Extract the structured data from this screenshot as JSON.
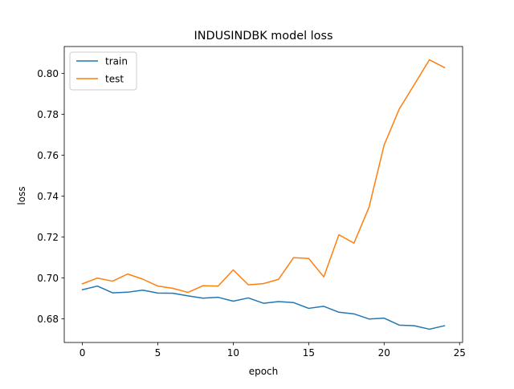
{
  "chart_data": {
    "type": "line",
    "title": "INDUSINDBK model loss",
    "xlabel": "epoch",
    "ylabel": "loss",
    "xlim": [
      -1.2,
      25.2
    ],
    "ylim": [
      0.6684,
      0.8132
    ],
    "xticks": [
      0,
      5,
      10,
      15,
      20,
      25
    ],
    "yticks": [
      0.68,
      0.7,
      0.72,
      0.74,
      0.76,
      0.78,
      0.8
    ],
    "grid": false,
    "legend_position": "upper left",
    "x": [
      0,
      1,
      2,
      3,
      4,
      5,
      6,
      7,
      8,
      9,
      10,
      11,
      12,
      13,
      14,
      15,
      16,
      17,
      18,
      19,
      20,
      21,
      22,
      23,
      24
    ],
    "series": [
      {
        "name": "train",
        "color": "#1f77b4",
        "values": [
          0.6942,
          0.696,
          0.6927,
          0.693,
          0.694,
          0.6926,
          0.6925,
          0.6912,
          0.6901,
          0.6905,
          0.6886,
          0.6902,
          0.6876,
          0.6884,
          0.6879,
          0.6851,
          0.6861,
          0.6832,
          0.6824,
          0.6799,
          0.6803,
          0.6769,
          0.6766,
          0.6749,
          0.6766
        ]
      },
      {
        "name": "test",
        "color": "#ff7f0e",
        "values": [
          0.6971,
          0.6999,
          0.6984,
          0.7019,
          0.6994,
          0.696,
          0.6949,
          0.6929,
          0.6962,
          0.696,
          0.7039,
          0.6966,
          0.6972,
          0.6993,
          0.7099,
          0.7095,
          0.7005,
          0.7211,
          0.717,
          0.7346,
          0.765,
          0.7826,
          0.7946,
          0.8067,
          0.8029
        ]
      }
    ]
  }
}
